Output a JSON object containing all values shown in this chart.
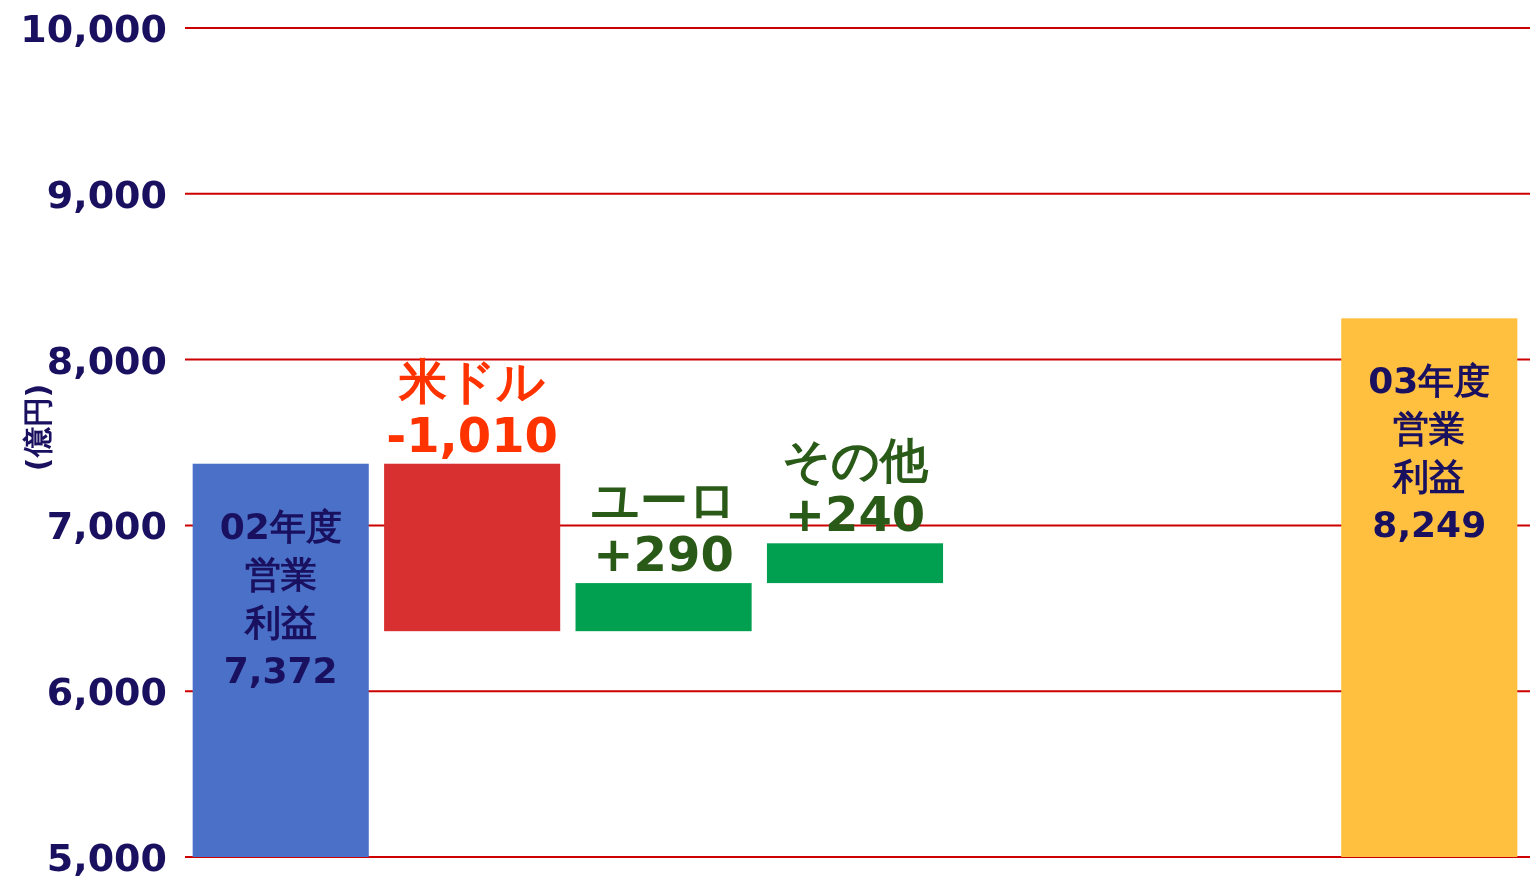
{
  "chart_data": {
    "type": "bar",
    "ylabel": "(億円)",
    "categories": [
      "02年度営業利益",
      "米ドル",
      "ユーロ",
      "その他",
      null,
      null,
      "03年度営業利益"
    ],
    "values": [
      7372,
      -1010,
      290,
      240,
      null,
      null,
      8249
    ],
    "base": [
      null,
      7372,
      6362,
      6652,
      null,
      null,
      null
    ],
    "colors": [
      "#4a70c8",
      "#d83030",
      "#00a050",
      "#00a050",
      null,
      null,
      "#ffc040"
    ],
    "value_labels": [
      "7,372",
      "-1,010",
      "+290",
      "+240",
      null,
      null,
      "8,249"
    ],
    "ylim": [
      5000,
      10000
    ],
    "yticks": [
      {
        "value": 5000,
        "label": "5,000"
      },
      {
        "value": 6000,
        "label": "6,000"
      },
      {
        "value": 7000,
        "label": "7,000"
      },
      {
        "value": 8000,
        "label": "8,000"
      },
      {
        "value": 9000,
        "label": "9,000"
      },
      {
        "value": 10000,
        "label": "10,000"
      }
    ],
    "grid": "y"
  }
}
